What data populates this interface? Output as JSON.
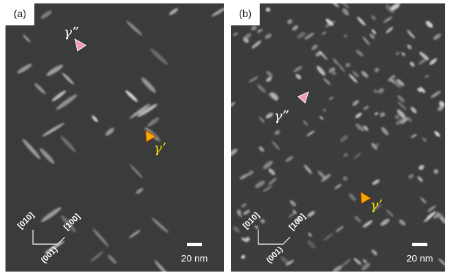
{
  "panels": [
    {
      "label": "(a)",
      "gamma_double_prime": "γ”",
      "gamma_prime": "γ’",
      "directions": [
        "[010]",
        "[100]",
        "(001)"
      ],
      "scale_bar": "20 nm"
    },
    {
      "label": "(b)",
      "gamma_double_prime": "γ”",
      "gamma_prime": "γ’",
      "directions": [
        "[010]",
        "[100]",
        "(001)"
      ],
      "scale_bar": "20 nm"
    }
  ]
}
